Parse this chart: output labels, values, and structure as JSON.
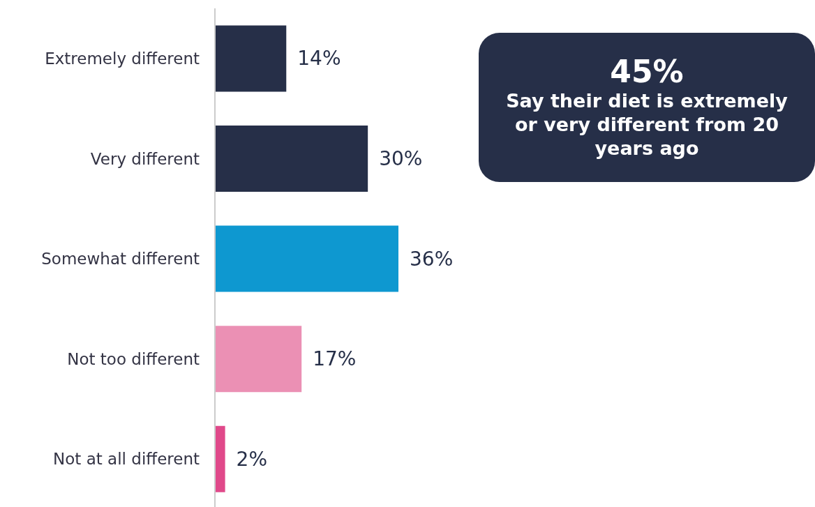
{
  "chart_data": {
    "type": "bar",
    "orientation": "horizontal",
    "categories": [
      "Extremely different",
      "Very different",
      "Somewhat different",
      "Not too different",
      "Not at all different"
    ],
    "values": [
      14,
      30,
      36,
      17,
      2
    ],
    "colors": [
      "#262f48",
      "#262f48",
      "#0e98d0",
      "#eb90b4",
      "#e0498a"
    ],
    "value_labels": [
      "14%",
      "30%",
      "36%",
      "17%",
      "2%"
    ],
    "annotations": [
      "45%",
      "Say their diet is extremely or very different from 20 years ago"
    ]
  }
}
